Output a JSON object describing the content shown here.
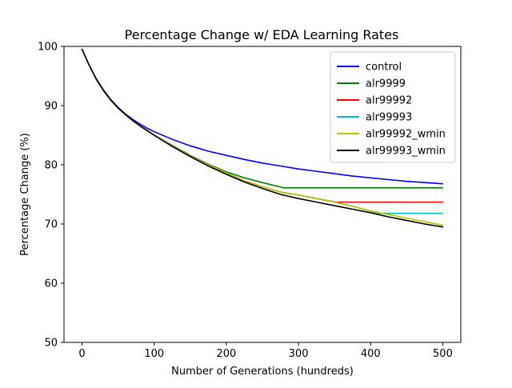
{
  "chart_data": {
    "type": "line",
    "title": "Percentage Change w/ EDA Learning Rates",
    "xlabel": "Number of Generations (hundreds)",
    "ylabel": "Percentage Change (%)",
    "xlim": [
      -25,
      525
    ],
    "ylim": [
      50,
      100
    ],
    "xticks": [
      0,
      100,
      200,
      300,
      400,
      500
    ],
    "yticks": [
      50,
      60,
      70,
      80,
      90,
      100
    ],
    "grid": false,
    "legend_position": "top-right",
    "series": [
      {
        "name": "control",
        "color": "#0000ff",
        "x": [
          0,
          10,
          20,
          30,
          40,
          50,
          60,
          70,
          80,
          90,
          100,
          125,
          150,
          175,
          200,
          225,
          250,
          275,
          300,
          325,
          350,
          375,
          400,
          425,
          450,
          475,
          500
        ],
        "y": [
          99.5,
          96.8,
          94.5,
          92.6,
          91.0,
          89.7,
          88.6,
          87.7,
          86.9,
          86.2,
          85.6,
          84.3,
          83.2,
          82.3,
          81.6,
          80.9,
          80.3,
          79.8,
          79.3,
          78.9,
          78.5,
          78.1,
          77.8,
          77.5,
          77.2,
          77.0,
          76.8
        ]
      },
      {
        "name": "alr9999",
        "color": "#008000",
        "x": [
          0,
          10,
          20,
          30,
          40,
          50,
          60,
          70,
          80,
          90,
          100,
          125,
          150,
          175,
          200,
          225,
          250,
          280,
          500
        ],
        "y": [
          99.5,
          96.8,
          94.4,
          92.5,
          90.9,
          89.6,
          88.5,
          87.5,
          86.6,
          85.8,
          85.0,
          83.3,
          81.6,
          80.1,
          78.8,
          77.8,
          77.0,
          76.1,
          76.1
        ]
      },
      {
        "name": "alr99992",
        "color": "#ff0000",
        "x": [
          0,
          10,
          20,
          30,
          40,
          50,
          60,
          70,
          80,
          90,
          100,
          125,
          150,
          175,
          200,
          225,
          250,
          275,
          300,
          325,
          352,
          500
        ],
        "y": [
          99.5,
          96.8,
          94.4,
          92.5,
          90.9,
          89.6,
          88.5,
          87.5,
          86.6,
          85.8,
          85.0,
          83.2,
          81.5,
          80.0,
          78.6,
          77.3,
          76.3,
          75.4,
          74.9,
          74.3,
          73.7,
          73.7
        ]
      },
      {
        "name": "alr99993",
        "color": "#00bfbf",
        "x": [
          0,
          10,
          20,
          30,
          40,
          50,
          60,
          70,
          80,
          90,
          100,
          125,
          150,
          175,
          200,
          225,
          250,
          275,
          300,
          325,
          350,
          375,
          412,
          500
        ],
        "y": [
          99.5,
          96.8,
          94.4,
          92.5,
          90.9,
          89.6,
          88.5,
          87.5,
          86.6,
          85.8,
          85.0,
          83.2,
          81.5,
          80.0,
          78.6,
          77.3,
          76.3,
          75.4,
          74.9,
          74.3,
          73.7,
          73.0,
          71.8,
          71.8
        ]
      },
      {
        "name": "alr99992_wmin",
        "color": "#bfbf00",
        "x": [
          0,
          10,
          20,
          30,
          40,
          50,
          60,
          70,
          80,
          90,
          100,
          125,
          150,
          175,
          200,
          225,
          250,
          275,
          300,
          325,
          350,
          375,
          400,
          425,
          450,
          475,
          500
        ],
        "y": [
          99.5,
          96.8,
          94.4,
          92.5,
          90.9,
          89.6,
          88.5,
          87.5,
          86.6,
          85.8,
          85.0,
          83.2,
          81.5,
          80.0,
          78.6,
          77.3,
          76.3,
          75.4,
          74.9,
          74.3,
          73.7,
          73.0,
          72.2,
          71.6,
          71.0,
          70.4,
          69.8
        ]
      },
      {
        "name": "alr99993_wmin",
        "color": "#000000",
        "x": [
          0,
          10,
          20,
          30,
          40,
          50,
          60,
          70,
          80,
          90,
          100,
          125,
          150,
          175,
          200,
          225,
          250,
          275,
          300,
          325,
          350,
          375,
          400,
          425,
          450,
          475,
          500
        ],
        "y": [
          99.5,
          96.8,
          94.4,
          92.5,
          90.9,
          89.6,
          88.5,
          87.5,
          86.6,
          85.8,
          85.0,
          83.1,
          81.4,
          79.8,
          78.4,
          77.1,
          76.0,
          75.0,
          74.3,
          73.7,
          73.1,
          72.5,
          71.9,
          71.2,
          70.6,
          70.0,
          69.5
        ]
      }
    ]
  }
}
